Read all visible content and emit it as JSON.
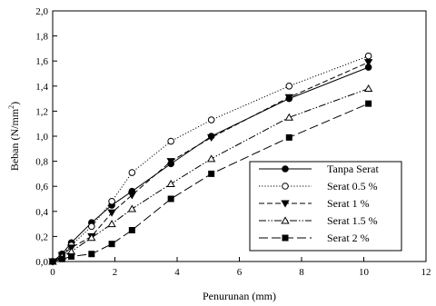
{
  "chart_data": {
    "type": "line",
    "title": "",
    "xlabel": "Penurunan (mm)",
    "ylabel_main": "Beban (N/mm",
    "ylabel_sup": "2",
    "ylabel_tail": ")",
    "xlim": [
      0,
      12
    ],
    "ylim": [
      0,
      2.0
    ],
    "xticks": [
      "0",
      "2",
      "4",
      "6",
      "8",
      "10",
      "12"
    ],
    "yticks": [
      "0,0",
      "0,2",
      "0,4",
      "0,6",
      "0,8",
      "1,0",
      "1,2",
      "1,4",
      "1,6",
      "1,8",
      "2,0"
    ],
    "grid": false,
    "legend_position": "lower-right",
    "series": [
      {
        "name": "Tanpa Serat",
        "marker": "circle-filled",
        "dash": "solid",
        "x": [
          0,
          0.3,
          0.6,
          1.25,
          1.9,
          2.55,
          3.8,
          5.1,
          7.6,
          10.15
        ],
        "y": [
          0,
          0.06,
          0.15,
          0.31,
          0.45,
          0.56,
          0.78,
          1.0,
          1.3,
          1.55
        ]
      },
      {
        "name": "Serat 0.5 %",
        "marker": "circle-open",
        "dash": "dotted",
        "x": [
          0,
          0.3,
          0.6,
          1.25,
          1.9,
          2.55,
          3.8,
          5.1,
          7.6,
          10.15
        ],
        "y": [
          0,
          0.05,
          0.13,
          0.28,
          0.48,
          0.71,
          0.96,
          1.13,
          1.4,
          1.64
        ]
      },
      {
        "name": "Serat 1 %",
        "marker": "triangle-down-filled",
        "dash": "dashed",
        "x": [
          0,
          0.3,
          0.6,
          1.25,
          1.9,
          2.55,
          3.8,
          5.1,
          7.6,
          10.15
        ],
        "y": [
          0,
          0.05,
          0.11,
          0.2,
          0.39,
          0.53,
          0.8,
          0.99,
          1.31,
          1.59
        ]
      },
      {
        "name": "Serat 1.5 %",
        "marker": "triangle-up-open",
        "dash": "dashdotdot",
        "x": [
          0,
          0.3,
          0.6,
          1.25,
          1.9,
          2.55,
          3.8,
          5.1,
          7.6,
          10.15
        ],
        "y": [
          0,
          0.04,
          0.08,
          0.19,
          0.3,
          0.42,
          0.62,
          0.82,
          1.15,
          1.38
        ]
      },
      {
        "name": "Serat 2 %",
        "marker": "square-filled",
        "dash": "longdash",
        "x": [
          0,
          0.3,
          0.6,
          1.25,
          1.9,
          2.55,
          3.8,
          5.1,
          7.6,
          10.15
        ],
        "y": [
          0,
          0.02,
          0.04,
          0.06,
          0.14,
          0.25,
          0.5,
          0.7,
          0.99,
          1.26
        ]
      }
    ]
  }
}
